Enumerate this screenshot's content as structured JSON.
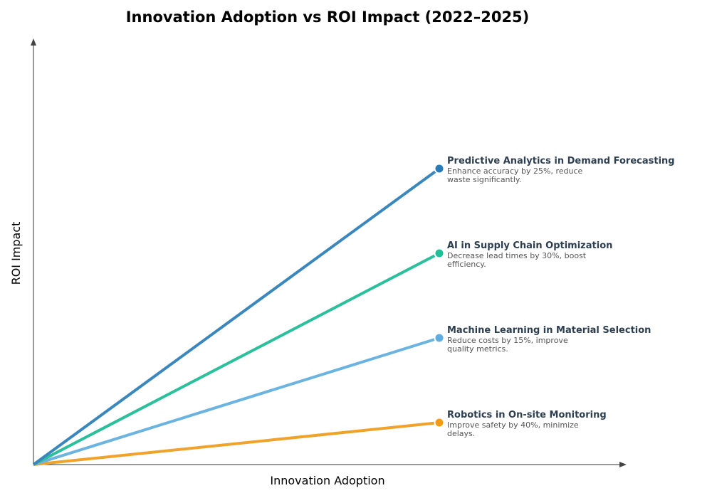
{
  "title": "Innovation Adoption vs ROI Impact (2022–2025)",
  "x_axis_label": "Innovation Adoption",
  "y_axis_label": "ROI Impact",
  "items": [
    {
      "label": "Predictive Analytics in Demand Forecasting",
      "description": "Enhance accuracy by 25%, reduce waste significantly."
    },
    {
      "label": "AI in Supply Chain Optimization",
      "description": "Decrease lead times by 30%, boost efficiency."
    },
    {
      "label": "Machine Learning in Material Selection",
      "description": "Reduce costs by 15%, improve quality metrics."
    },
    {
      "label": "Robotics in On-site Monitoring",
      "description": "Improve safety by 40%, minimize delays."
    }
  ]
}
